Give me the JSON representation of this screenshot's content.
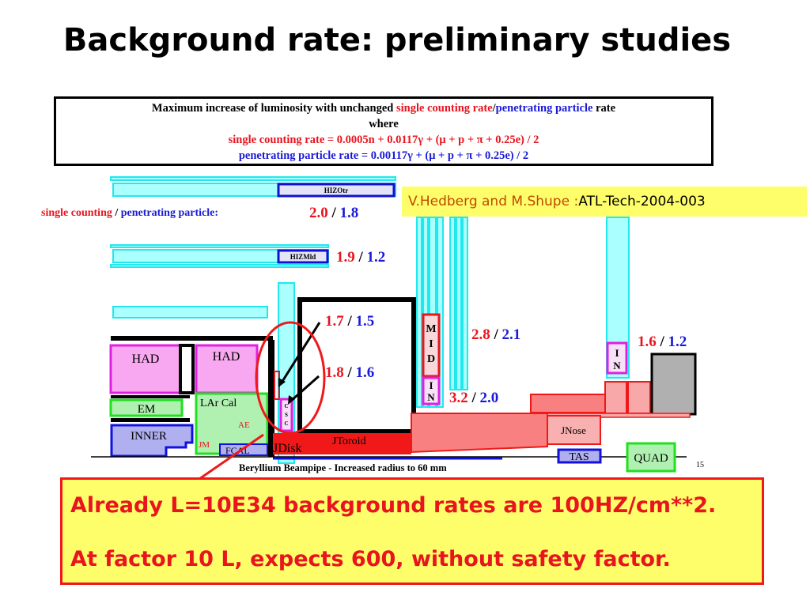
{
  "title": "Background rate: preliminary studies",
  "formula_box": {
    "line1_prefix": "Maximum increase of luminosity with unchanged ",
    "line1_red": "single counting rate",
    "line1_sep": "/",
    "line1_blue": "penetrating particle",
    "line1_suffix": " rate",
    "line2": "where",
    "line3": "single counting rate = 0.0005n + 0.0117γ + (μ + p + π + 0.25e) / 2",
    "line4": "penetrating particle rate = 0.00117γ + (μ + p + π + 0.25e) / 2"
  },
  "reference": {
    "authors": "V.Hedberg and M.Shupe :",
    "doc": "ATL-Tech-2004-003"
  },
  "legend": {
    "red": "single counting",
    "sep": " / ",
    "blue": "penetrating particle:"
  },
  "rates": [
    {
      "single": "2.0",
      "penetrating": "1.8"
    },
    {
      "single": "1.9",
      "penetrating": "1.2"
    },
    {
      "single": "1.7",
      "penetrating": "1.5"
    },
    {
      "single": "1.8",
      "penetrating": "1.6"
    },
    {
      "single": "2.8",
      "penetrating": "2.1"
    },
    {
      "single": "3.2",
      "penetrating": "2.0"
    },
    {
      "single": "1.6",
      "penetrating": "1.2"
    }
  ],
  "labels": {
    "hizotr": "HIZOtr",
    "hizmld": "HIZMld",
    "had1": "HAD",
    "had2": "HAD",
    "em": "EM",
    "inner": "INNER",
    "lar": "LAr  Cal",
    "ae": "AE",
    "jm": "JM",
    "fcal": "FCAL",
    "jdisk": "JDisk",
    "jtoroid": "JToroid",
    "mid": [
      "M",
      "I",
      "D"
    ],
    "in": [
      "I",
      "N"
    ],
    "csc": [
      "C",
      "S",
      "C"
    ],
    "jnose": "JNose",
    "tas": "TAS",
    "quad": "QUAD",
    "beampipe": "Beryllium Beampipe - Increased radius to 60 mm",
    "page": "15"
  },
  "conclusion": {
    "line1": "Already L=10E34 background rates are 100HZ/cm**2.",
    "line2": "At factor 10  L, expects 600, without safety factor."
  },
  "colors": {
    "single": "#e8141e",
    "penetrating": "#1a1ad8",
    "highlight": "#fefe6a",
    "shielding": "#aaffff"
  }
}
